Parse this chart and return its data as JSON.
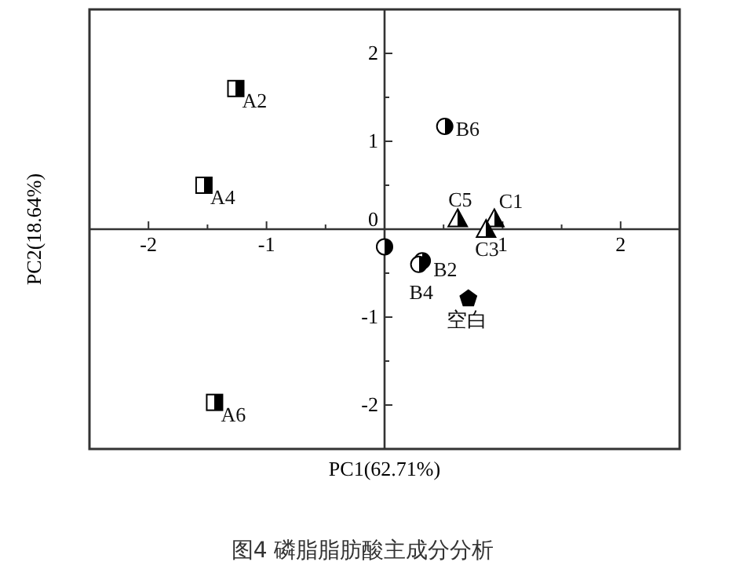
{
  "chart_data": {
    "type": "scatter",
    "title": "图4 磷脂脂肪酸主成分分析",
    "xlabel": "PC1(62.71%)",
    "ylabel": "PC2(18.64%)",
    "xlim": [
      -2.5,
      2.5
    ],
    "ylim": [
      -2.5,
      2.5
    ],
    "xticks": [
      -2,
      -1,
      {
        "value": 0,
        "label": null
      },
      1,
      2
    ],
    "yticks": [
      -2,
      -1,
      0,
      1,
      2
    ],
    "grid": false,
    "series": [
      {
        "name": "A2",
        "color": "#000000",
        "marker": "square",
        "x": [
          -1.26
        ],
        "values": [
          1.6
        ]
      },
      {
        "name": "A4",
        "color": "#000000",
        "marker": "square",
        "x": [
          -1.53
        ],
        "values": [
          0.5
        ]
      },
      {
        "name": "A6",
        "color": "#000000",
        "marker": "square",
        "x": [
          -1.44
        ],
        "values": [
          -1.97
        ]
      },
      {
        "name": "B6",
        "color": "#000000",
        "marker": "circle",
        "x": [
          0.51
        ],
        "values": [
          1.17
        ]
      },
      {
        "name": "B2",
        "color": "#000000",
        "marker": "circle",
        "x": [
          0.32
        ],
        "values": [
          -0.36
        ]
      },
      {
        "name": "B4",
        "color": "#000000",
        "marker": "circle",
        "x": [
          0.29
        ],
        "values": [
          -0.4
        ]
      },
      {
        "name": "C5",
        "color": "#000000",
        "marker": "triangle",
        "x": [
          0.62
        ],
        "values": [
          0.12
        ]
      },
      {
        "name": "C1",
        "color": "#000000",
        "marker": "triangle",
        "x": [
          0.93
        ],
        "values": [
          0.12
        ]
      },
      {
        "name": "C3",
        "color": "#000000",
        "marker": "triangle",
        "x": [
          0.86
        ],
        "values": [
          0.0
        ]
      },
      {
        "name": "空白",
        "color": "#000000",
        "x": [
          0.71
        ],
        "values": [
          -0.79
        ]
      },
      {
        "color": "#000000",
        "marker": "circle",
        "x": [
          0.0
        ],
        "values": [
          -0.2
        ]
      }
    ]
  }
}
